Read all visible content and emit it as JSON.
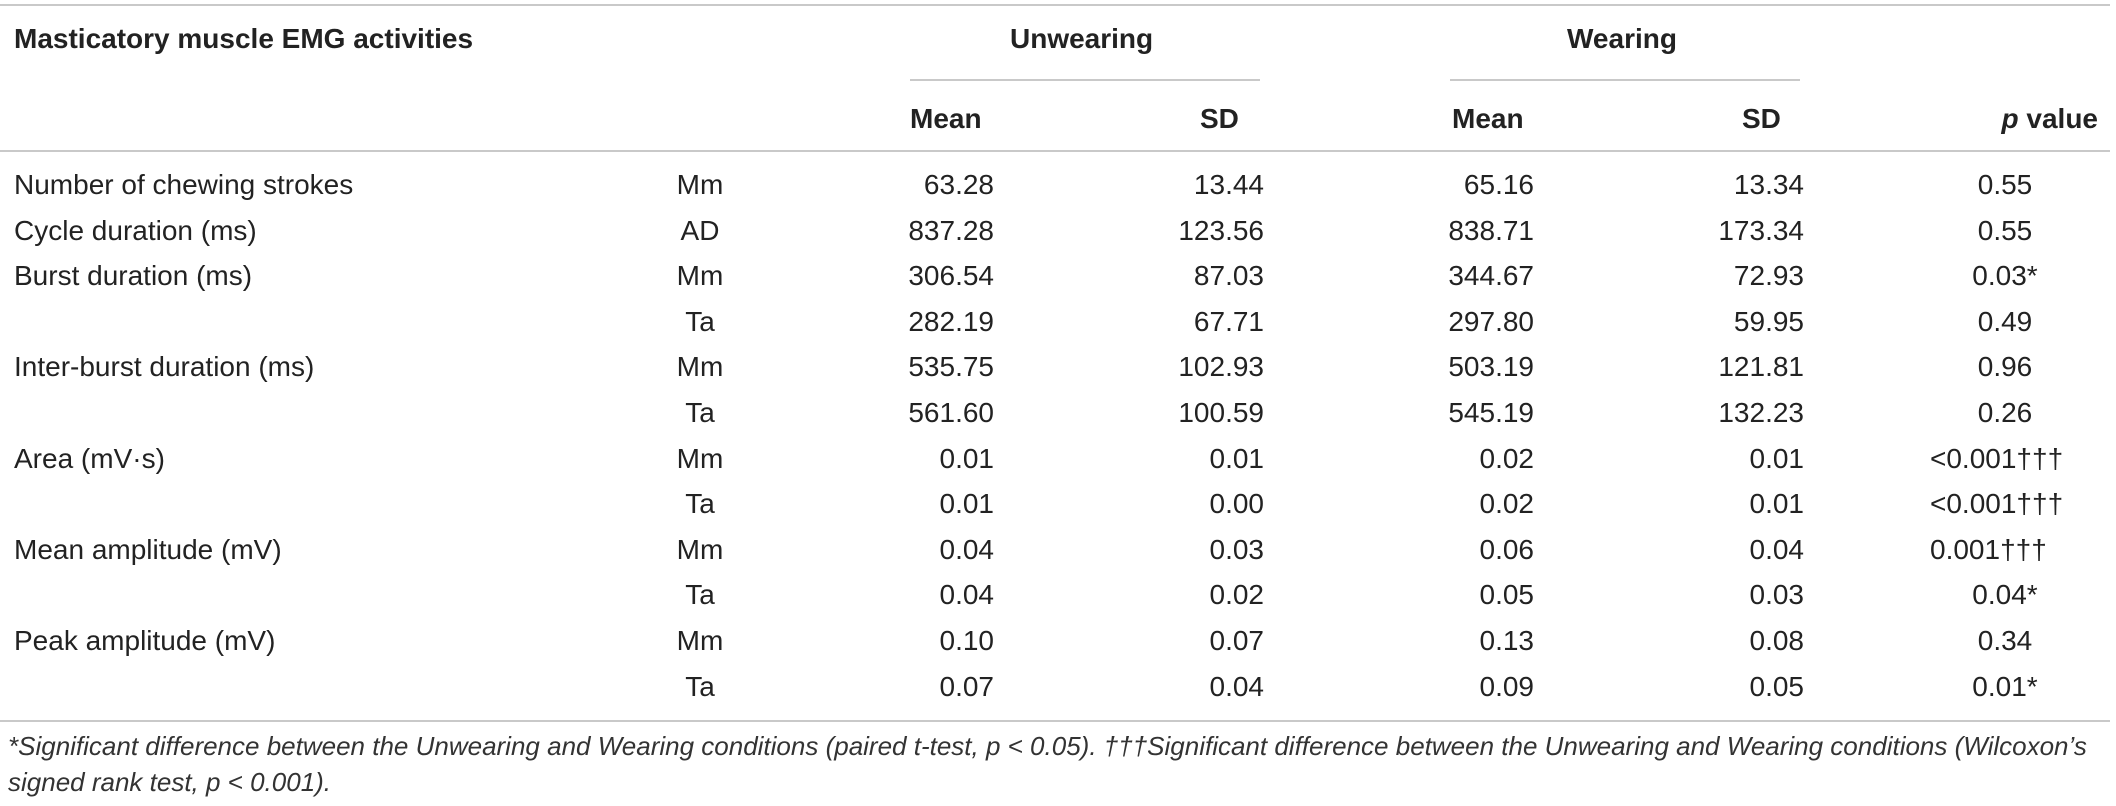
{
  "table": {
    "title": "Masticatory muscle EMG activities",
    "groups": {
      "unwearing": "Unwearing",
      "wearing": "Wearing"
    },
    "subheaders": {
      "unwearing_mean": "Mean",
      "unwearing_sd": "SD",
      "wearing_mean": "Mean",
      "wearing_sd": "SD",
      "p_italic": "p",
      "p_rest": " value"
    },
    "rows": [
      {
        "label": "Number of chewing strokes",
        "muscle": "Mm",
        "u_mean": "63.28",
        "u_sd": "13.44",
        "w_mean": "65.16",
        "w_sd": "13.34",
        "p": "0.55"
      },
      {
        "label": "Cycle duration (ms)",
        "muscle": "AD",
        "u_mean": "837.28",
        "u_sd": "123.56",
        "w_mean": "838.71",
        "w_sd": "173.34",
        "p": "0.55"
      },
      {
        "label": "Burst duration (ms)",
        "muscle": "Mm",
        "u_mean": "306.54",
        "u_sd": "87.03",
        "w_mean": "344.67",
        "w_sd": "72.93",
        "p": "0.03*"
      },
      {
        "label": "",
        "muscle": "Ta",
        "u_mean": "282.19",
        "u_sd": "67.71",
        "w_mean": "297.80",
        "w_sd": "59.95",
        "p": "0.49"
      },
      {
        "label": "Inter-burst duration (ms)",
        "muscle": "Mm",
        "u_mean": "535.75",
        "u_sd": "102.93",
        "w_mean": "503.19",
        "w_sd": "121.81",
        "p": "0.96"
      },
      {
        "label": "",
        "muscle": "Ta",
        "u_mean": "561.60",
        "u_sd": "100.59",
        "w_mean": "545.19",
        "w_sd": "132.23",
        "p": "0.26"
      },
      {
        "label": "Area (mV·s)",
        "muscle": "Mm",
        "u_mean": "0.01",
        "u_sd": "0.01",
        "w_mean": "0.02",
        "w_sd": "0.01",
        "p": "<0.001†††"
      },
      {
        "label": "",
        "muscle": "Ta",
        "u_mean": "0.01",
        "u_sd": "0.00",
        "w_mean": "0.02",
        "w_sd": "0.01",
        "p": "<0.001†††"
      },
      {
        "label": "Mean amplitude (mV)",
        "muscle": "Mm",
        "u_mean": "0.04",
        "u_sd": "0.03",
        "w_mean": "0.06",
        "w_sd": "0.04",
        "p": "0.001†††"
      },
      {
        "label": "",
        "muscle": "Ta",
        "u_mean": "0.04",
        "u_sd": "0.02",
        "w_mean": "0.05",
        "w_sd": "0.03",
        "p": "0.04*"
      },
      {
        "label": "Peak amplitude (mV)",
        "muscle": "Mm",
        "u_mean": "0.10",
        "u_sd": "0.07",
        "w_mean": "0.13",
        "w_sd": "0.08",
        "p": "0.34"
      },
      {
        "label": "",
        "muscle": "Ta",
        "u_mean": "0.07",
        "u_sd": "0.04",
        "w_mean": "0.09",
        "w_sd": "0.05",
        "p": "0.01*"
      }
    ],
    "footnote": "*Significant difference between the Unwearing and Wearing conditions (paired t-test, p < 0.05). †††Significant difference between the Unwearing and Wearing conditions (Wilcoxon’s signed rank test, p < 0.001)."
  }
}
